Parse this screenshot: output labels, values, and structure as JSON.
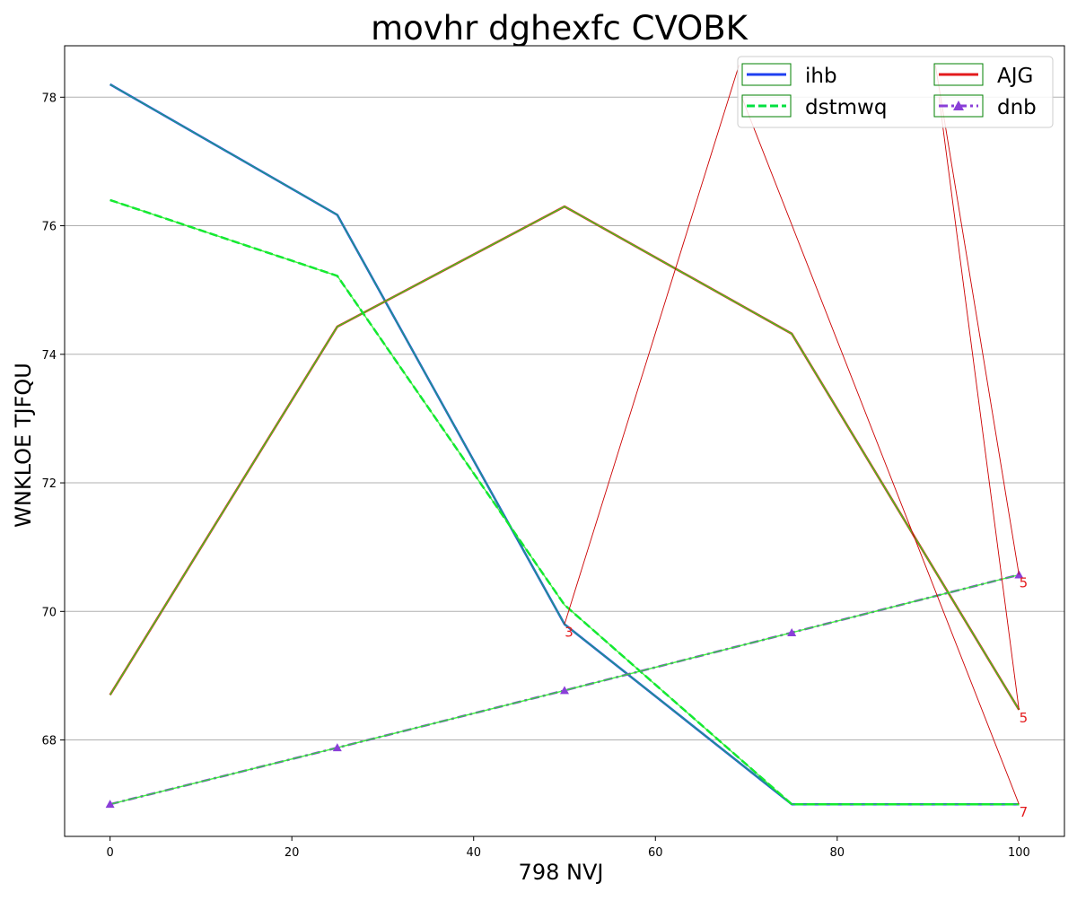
{
  "chart_data": {
    "type": "line",
    "title": "movhr dghexfc CVOBK",
    "xlabel": "798 NVJ",
    "ylabel": "WNKLOE TJFQU",
    "x": [
      0,
      25,
      50,
      75,
      100
    ],
    "xlim": [
      -5,
      105
    ],
    "ylim": [
      66.5,
      78.8
    ],
    "xticks": [
      0,
      20,
      40,
      60,
      80,
      100
    ],
    "yticks": [
      68,
      70,
      72,
      74,
      76,
      78
    ],
    "grid": "horizontal",
    "legend_position": "top-right",
    "series": [
      {
        "name": "ihb",
        "values": [
          78.2,
          76.17,
          69.8,
          67.0,
          67.0
        ],
        "color": "#1f3ff0",
        "dash": "solid",
        "marker": "none"
      },
      {
        "name": "AJG",
        "values": [
          68.7,
          74.43,
          76.3,
          74.32,
          68.47
        ],
        "color": "#e31a1c",
        "dash": "solid",
        "marker": "none"
      },
      {
        "name": "dstmwq",
        "values": [
          76.4,
          75.22,
          70.1,
          67.0,
          67.0
        ],
        "color": "#00e040",
        "dash": "dashed",
        "marker": "none"
      },
      {
        "name": "dnb",
        "values": [
          67.0,
          67.88,
          68.77,
          69.67,
          70.57
        ],
        "color": "#8a3fd8",
        "dash": "dashdot",
        "marker": "triangle"
      }
    ],
    "overlay_color": "#22ee22",
    "annotations": [
      {
        "text": "3",
        "x": 50,
        "y": 69.8,
        "from": [
          69.2,
          78.5
        ]
      },
      {
        "text": "5",
        "x": 100,
        "y": 70.57,
        "from": [
          90.8,
          78.5
        ]
      },
      {
        "text": "5",
        "x": 100,
        "y": 68.47,
        "from": [
          91.2,
          78.0
        ]
      },
      {
        "text": "7",
        "x": 100,
        "y": 67.0,
        "from": [
          69.5,
          78.0
        ]
      }
    ],
    "annotation_color": "#e31a1c"
  }
}
